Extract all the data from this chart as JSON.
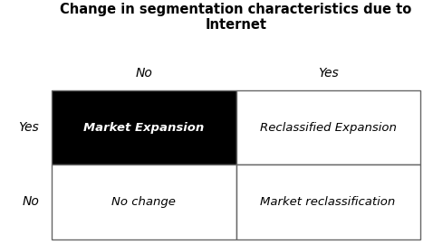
{
  "title": "Change in segmentation characteristics due to\nInternet",
  "title_fontsize": 10.5,
  "title_fontweight": "bold",
  "col_labels": [
    "No",
    "Yes"
  ],
  "row_labels": [
    "Yes",
    "No"
  ],
  "col_label_fontsize": 10,
  "row_label_fontsize": 10,
  "cells": [
    [
      "Market Expansion",
      "Reclassified Expansion"
    ],
    [
      "No change",
      "Market reclassification"
    ]
  ],
  "cell_bg_colors": [
    [
      "#000000",
      "#ffffff"
    ],
    [
      "#ffffff",
      "#ffffff"
    ]
  ],
  "cell_text_colors": [
    [
      "#ffffff",
      "#000000"
    ],
    [
      "#000000",
      "#000000"
    ]
  ],
  "cell_fontsize": 9.5,
  "background_color": "#ffffff",
  "grid_color": "#666666",
  "grid_linewidth": 1.0
}
